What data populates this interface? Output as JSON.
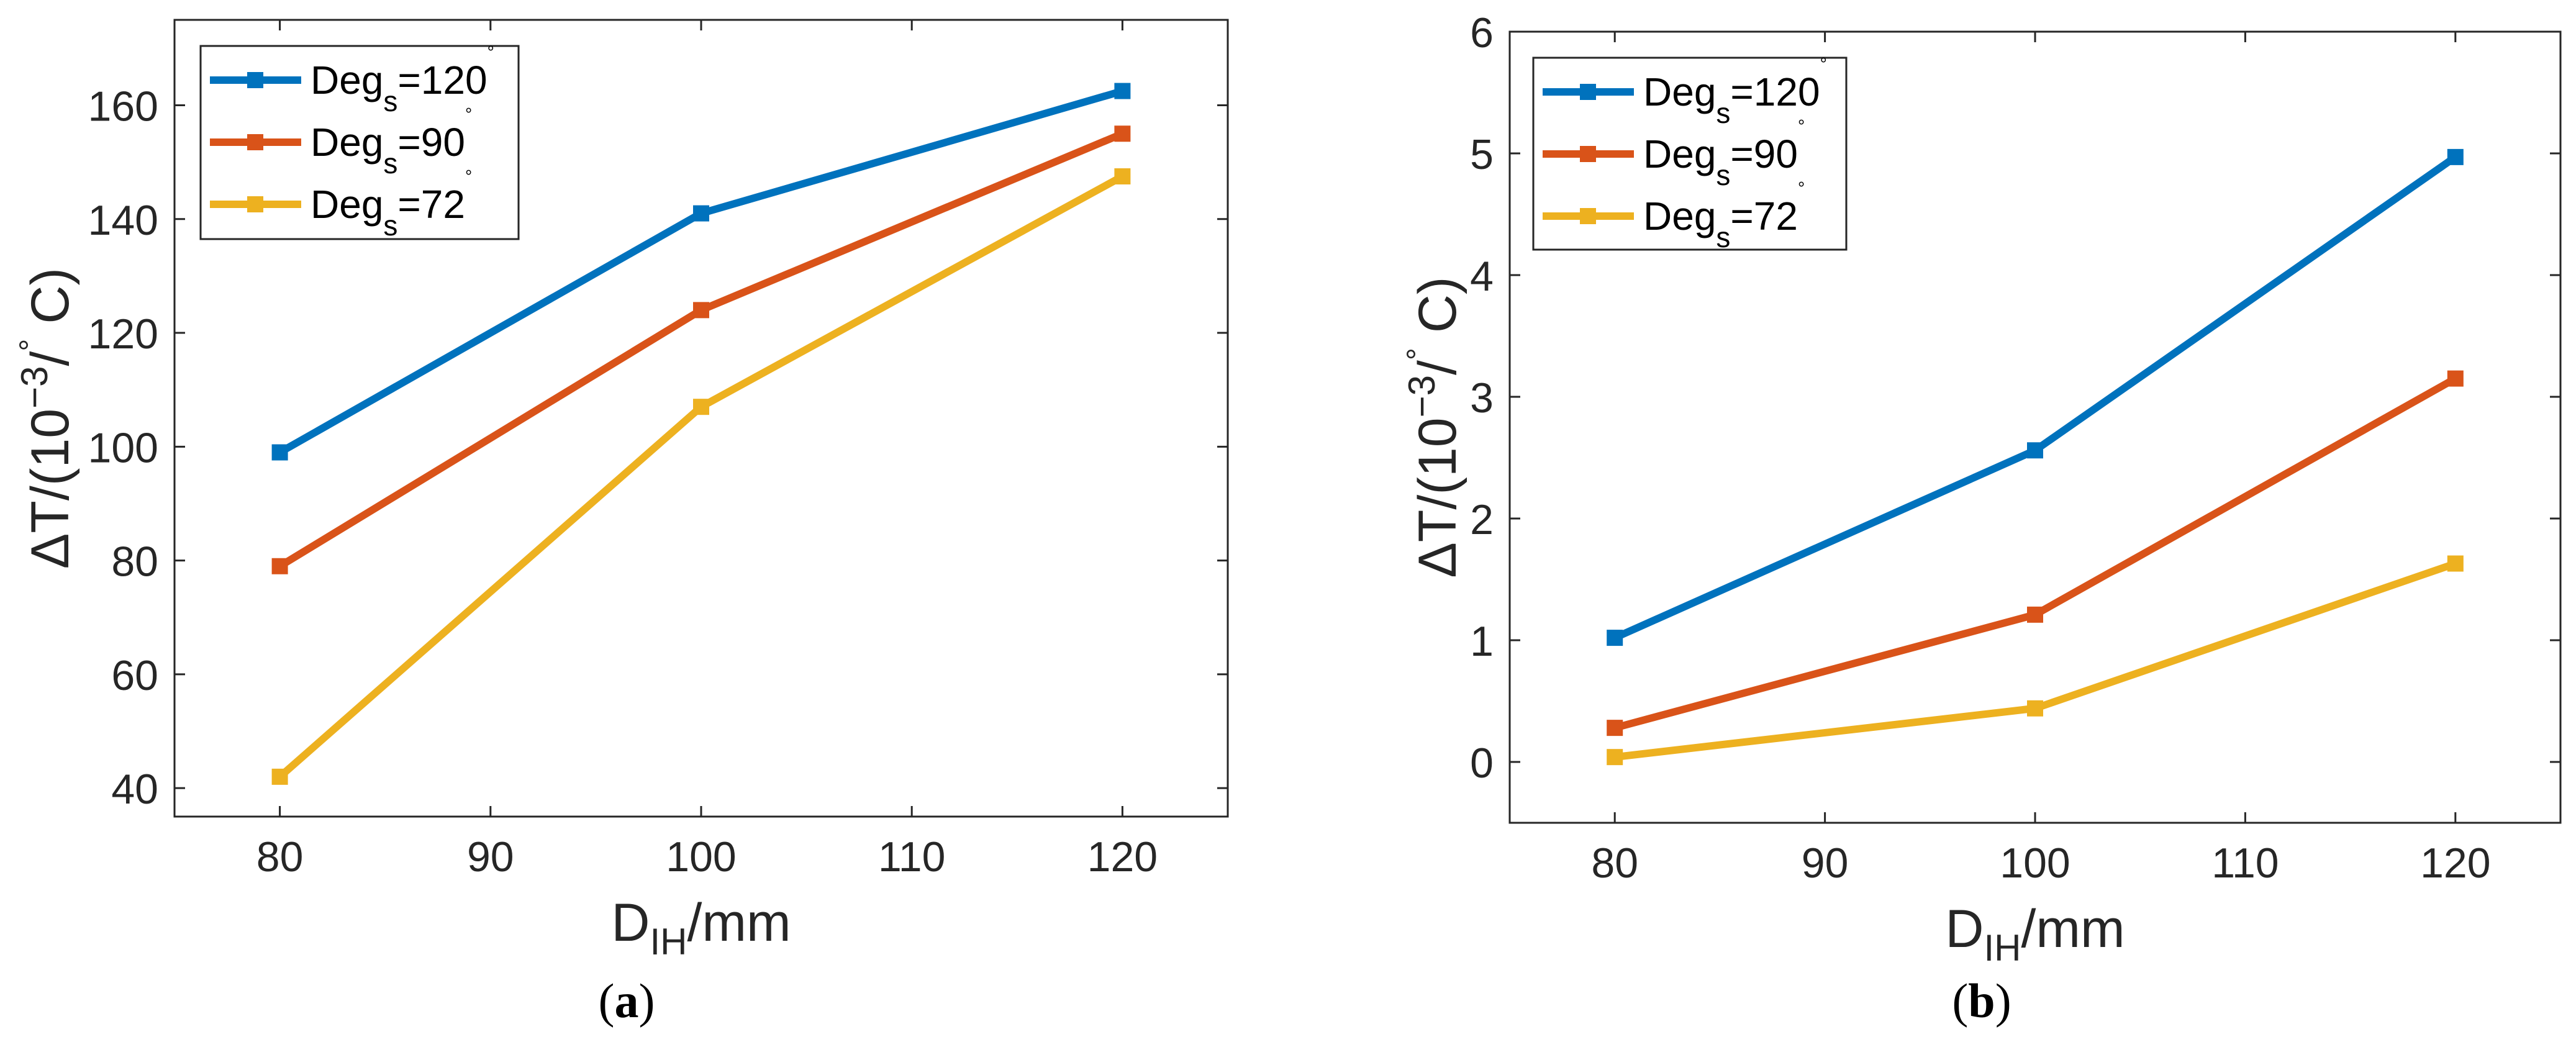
{
  "chart_data": [
    {
      "type": "line",
      "panel": "a",
      "caption": {
        "open": "(",
        "letter": "a",
        "close": ")"
      },
      "title": "",
      "xlabel": {
        "base": "D",
        "sub": "IH",
        "rest": "/mm"
      },
      "ylabel": {
        "base": "ΔT/(10",
        "sup1": "−3",
        "mid": "/",
        "sup2": "°",
        "rest": " C)"
      },
      "xlim": [
        75,
        125
      ],
      "ylim": [
        35,
        175
      ],
      "xticks": [
        80,
        90,
        100,
        110,
        120
      ],
      "yticks": [
        40,
        60,
        80,
        100,
        120,
        140,
        160
      ],
      "grid": false,
      "legend_position": "top-left",
      "x": [
        80,
        100,
        120
      ],
      "series": [
        {
          "name": "Degs=120°",
          "label": {
            "base": "Deg",
            "sub": "s",
            "value": "=120",
            "sup": "°"
          },
          "color": "#0072BD",
          "values": [
            99,
            141,
            162.5
          ]
        },
        {
          "name": "Degs=90°",
          "label": {
            "base": "Deg",
            "sub": "s",
            "value": "=90",
            "sup": "°"
          },
          "color": "#D95319",
          "values": [
            79,
            124,
            155
          ]
        },
        {
          "name": "Degs=72°",
          "label": {
            "base": "Deg",
            "sub": "s",
            "value": "=72",
            "sup": "°"
          },
          "color": "#EDB120",
          "values": [
            42,
            107,
            147.5
          ]
        }
      ]
    },
    {
      "type": "line",
      "panel": "b",
      "caption": {
        "open": "(",
        "letter": "b",
        "close": ")"
      },
      "title": "",
      "xlabel": {
        "base": "D",
        "sub": "IH",
        "rest": "/mm"
      },
      "ylabel": {
        "base": "ΔT/(10",
        "sup1": "−3",
        "mid": "/",
        "sup2": "°",
        "rest": " C)"
      },
      "xlim": [
        75,
        125
      ],
      "ylim": [
        -0.5,
        6
      ],
      "xticks": [
        80,
        90,
        100,
        110,
        120
      ],
      "yticks": [
        0,
        1,
        2,
        3,
        4,
        5,
        6
      ],
      "grid": false,
      "legend_position": "top-left",
      "x": [
        80,
        100,
        120
      ],
      "series": [
        {
          "name": "Degs=120°",
          "label": {
            "base": "Deg",
            "sub": "s",
            "value": "=120",
            "sup": "°"
          },
          "color": "#0072BD",
          "values": [
            1.02,
            2.56,
            4.97
          ]
        },
        {
          "name": "Degs=90°",
          "label": {
            "base": "Deg",
            "sub": "s",
            "value": "=90",
            "sup": "°"
          },
          "color": "#D95319",
          "values": [
            0.28,
            1.21,
            3.15
          ]
        },
        {
          "name": "Degs=72°",
          "label": {
            "base": "Deg",
            "sub": "s",
            "value": "=72",
            "sup": "°"
          },
          "color": "#EDB120",
          "values": [
            0.04,
            0.44,
            1.63
          ]
        }
      ]
    }
  ]
}
